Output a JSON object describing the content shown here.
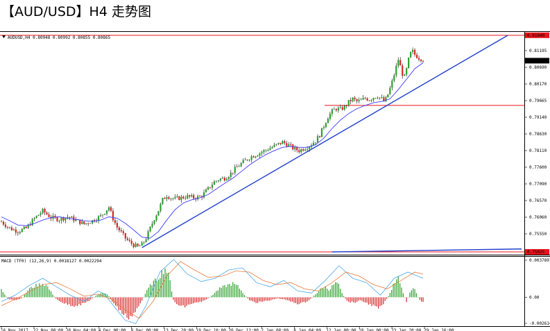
{
  "title": "【AUD/USD】H4 走势图",
  "colors": {
    "bull": "#2ca02c",
    "bear": "#d62728",
    "trendline": "#1f3fcc",
    "resistance": "#e8141a",
    "ma": "#3a3aff",
    "signal": "#e87a3a",
    "macd_line": "#49a7e8"
  },
  "chart_data": [
    {
      "type": "candlestick",
      "symbol_header": "AUDUSD,H4  0.80948 0.80992 0.80855 0.80865",
      "y_ticks": [
        "0.81195",
        "0.80690",
        "0.80170",
        "0.79665",
        "0.79140",
        "0.78630",
        "0.78110",
        "0.77600",
        "0.77090",
        "0.76570",
        "0.76060",
        "0.75550"
      ],
      "ylim": [
        0.7503,
        0.817
      ],
      "x_ticks": [
        "16 Nov 2017",
        "22 Nov 08:00",
        "28 Nov 04:00",
        "4 Dec 00:00",
        "8 Dec 00:00",
        "13 Dec 20:00",
        "19 Dec 16:00",
        "26 Dec 12:00",
        "2 Jan 08:00",
        "8 Jan 04:00",
        "12 Jan 00:00",
        "18 Jan 00:00",
        "23 Jan 20:00",
        "29 Jan 16:00"
      ],
      "last_price": "0.80865",
      "last_price_value": 0.80865,
      "price_path": [
        [
          0,
          0.7595
        ],
        [
          12,
          0.7575
        ],
        [
          24,
          0.7566
        ],
        [
          36,
          0.7575
        ],
        [
          48,
          0.7605
        ],
        [
          60,
          0.7628
        ],
        [
          72,
          0.7608
        ],
        [
          84,
          0.7602
        ],
        [
          96,
          0.761
        ],
        [
          108,
          0.76
        ],
        [
          120,
          0.7588
        ],
        [
          132,
          0.7598
        ],
        [
          144,
          0.7612
        ],
        [
          150,
          0.7625
        ],
        [
          156,
          0.764
        ],
        [
          162,
          0.7605
        ],
        [
          168,
          0.7578
        ],
        [
          174,
          0.7562
        ],
        [
          180,
          0.7545
        ],
        [
          186,
          0.7533
        ],
        [
          192,
          0.7524
        ],
        [
          198,
          0.7518
        ],
        [
          204,
          0.7525
        ],
        [
          210,
          0.7545
        ],
        [
          216,
          0.7575
        ],
        [
          222,
          0.7605
        ],
        [
          228,
          0.763
        ],
        [
          234,
          0.7662
        ],
        [
          240,
          0.7675
        ],
        [
          246,
          0.7668
        ],
        [
          252,
          0.7665
        ],
        [
          260,
          0.7668
        ],
        [
          270,
          0.7672
        ],
        [
          280,
          0.7668
        ],
        [
          290,
          0.7672
        ],
        [
          300,
          0.7695
        ],
        [
          308,
          0.7715
        ],
        [
          316,
          0.7725
        ],
        [
          324,
          0.7728
        ],
        [
          332,
          0.774
        ],
        [
          340,
          0.7758
        ],
        [
          348,
          0.7772
        ],
        [
          356,
          0.7785
        ],
        [
          364,
          0.7795
        ],
        [
          372,
          0.7802
        ],
        [
          380,
          0.781
        ],
        [
          390,
          0.782
        ],
        [
          400,
          0.783
        ],
        [
          408,
          0.7838
        ],
        [
          416,
          0.783
        ],
        [
          424,
          0.7818
        ],
        [
          432,
          0.7812
        ],
        [
          440,
          0.782
        ],
        [
          448,
          0.7828
        ],
        [
          456,
          0.7842
        ],
        [
          462,
          0.786
        ],
        [
          468,
          0.7888
        ],
        [
          474,
          0.7915
        ],
        [
          480,
          0.7932
        ],
        [
          486,
          0.794
        ],
        [
          492,
          0.7938
        ],
        [
          498,
          0.7945
        ],
        [
          504,
          0.796
        ],
        [
          510,
          0.797
        ],
        [
          516,
          0.7962
        ],
        [
          522,
          0.7965
        ],
        [
          528,
          0.7972
        ],
        [
          534,
          0.7968
        ],
        [
          540,
          0.7975
        ],
        [
          546,
          0.7978
        ],
        [
          552,
          0.797
        ],
        [
          556,
          0.796
        ],
        [
          560,
          0.7978
        ],
        [
          564,
          0.8002
        ],
        [
          568,
          0.8028
        ],
        [
          572,
          0.806
        ],
        [
          576,
          0.809
        ],
        [
          580,
          0.8062
        ],
        [
          584,
          0.803
        ],
        [
          588,
          0.806
        ],
        [
          592,
          0.81
        ],
        [
          596,
          0.8118
        ],
        [
          600,
          0.8105
        ],
        [
          606,
          0.8095
        ],
        [
          612,
          0.809
        ]
      ],
      "ma_path": [
        [
          0,
          0.761
        ],
        [
          12,
          0.7598
        ],
        [
          24,
          0.7585
        ],
        [
          36,
          0.7583
        ],
        [
          48,
          0.759
        ],
        [
          60,
          0.76
        ],
        [
          72,
          0.7608
        ],
        [
          84,
          0.761
        ],
        [
          96,
          0.7606
        ],
        [
          108,
          0.7602
        ],
        [
          120,
          0.7598
        ],
        [
          132,
          0.7596
        ],
        [
          144,
          0.76
        ],
        [
          156,
          0.761
        ],
        [
          168,
          0.7606
        ],
        [
          180,
          0.759
        ],
        [
          192,
          0.757
        ],
        [
          204,
          0.7548
        ],
        [
          216,
          0.7545
        ],
        [
          228,
          0.7565
        ],
        [
          240,
          0.76
        ],
        [
          252,
          0.7632
        ],
        [
          264,
          0.7652
        ],
        [
          276,
          0.7662
        ],
        [
          288,
          0.7668
        ],
        [
          300,
          0.7678
        ],
        [
          312,
          0.7695
        ],
        [
          324,
          0.7712
        ],
        [
          336,
          0.7728
        ],
        [
          348,
          0.7748
        ],
        [
          360,
          0.7768
        ],
        [
          372,
          0.7785
        ],
        [
          384,
          0.78
        ],
        [
          396,
          0.7812
        ],
        [
          408,
          0.7822
        ],
        [
          420,
          0.7825
        ],
        [
          432,
          0.7822
        ],
        [
          444,
          0.7822
        ],
        [
          456,
          0.783
        ],
        [
          468,
          0.785
        ],
        [
          480,
          0.788
        ],
        [
          492,
          0.7905
        ],
        [
          504,
          0.7925
        ],
        [
          516,
          0.794
        ],
        [
          528,
          0.795
        ],
        [
          540,
          0.7958
        ],
        [
          552,
          0.7962
        ],
        [
          564,
          0.797
        ],
        [
          576,
          0.7998
        ],
        [
          588,
          0.803
        ],
        [
          600,
          0.8062
        ],
        [
          612,
          0.808
        ]
      ],
      "annotations": {
        "horizontal_lines": [
          0.8164,
          0.795,
          0.7503
        ],
        "horizontal_line_labels": [
          "0.81640",
          "",
          "0.75025"
        ],
        "trendlines": [
          {
            "from": [
              204,
              0.7516
            ],
            "to": [
              735,
              0.8164
            ]
          },
          {
            "from": [
              480,
              0.7503
            ],
            "to": [
              755,
              0.7512
            ]
          }
        ]
      }
    },
    {
      "type": "bar",
      "header": "MACD (TF0) (12,26,9)  0.0018127  0.0022294",
      "y_ticks": [
        "0.00378970",
        "0.00",
        "-0.002614"
      ],
      "ylim": [
        -0.002614,
        0.0037897
      ],
      "histogram_path": [
        [
          0,
          0.0007
        ],
        [
          10,
          -0.0002
        ],
        [
          20,
          -0.0003
        ],
        [
          30,
          -0.0001
        ],
        [
          40,
          0.0008
        ],
        [
          50,
          0.0011
        ],
        [
          60,
          0.0013
        ],
        [
          66,
          0.0011
        ],
        [
          72,
          0.0005
        ],
        [
          80,
          -0.0002
        ],
        [
          92,
          -0.0006
        ],
        [
          104,
          -0.0008
        ],
        [
          116,
          -0.0007
        ],
        [
          128,
          -0.0003
        ],
        [
          138,
          0.0002
        ],
        [
          146,
          0.0004
        ],
        [
          154,
          0.0003
        ],
        [
          162,
          -0.0005
        ],
        [
          170,
          -0.0011
        ],
        [
          178,
          -0.0017
        ],
        [
          186,
          -0.0019
        ],
        [
          194,
          -0.0014
        ],
        [
          202,
          -0.0006
        ],
        [
          210,
          0.0005
        ],
        [
          218,
          0.0013
        ],
        [
          226,
          0.0017
        ],
        [
          232,
          0.0023
        ],
        [
          238,
          0.0028
        ],
        [
          244,
          0.0018
        ],
        [
          250,
          -0.0004
        ],
        [
          258,
          -0.0008
        ],
        [
          266,
          -0.0009
        ],
        [
          276,
          -0.0006
        ],
        [
          286,
          -0.0005
        ],
        [
          296,
          -0.0003
        ],
        [
          306,
          0.0002
        ],
        [
          316,
          0.0008
        ],
        [
          326,
          0.0011
        ],
        [
          336,
          0.0013
        ],
        [
          344,
          0.001
        ],
        [
          352,
          0.0003
        ],
        [
          360,
          -0.0003
        ],
        [
          370,
          -0.0005
        ],
        [
          380,
          -0.0004
        ],
        [
          390,
          -0.0003
        ],
        [
          400,
          -0.0001
        ],
        [
          410,
          -0.0002
        ],
        [
          420,
          -0.0004
        ],
        [
          430,
          -0.0006
        ],
        [
          440,
          -0.0005
        ],
        [
          448,
          -0.0002
        ],
        [
          456,
          0.0003
        ],
        [
          464,
          0.0008
        ],
        [
          470,
          0.001
        ],
        [
          476,
          0.0007
        ],
        [
          482,
          0.0012
        ],
        [
          488,
          0.0014
        ],
        [
          494,
          0.0004
        ],
        [
          502,
          -0.0004
        ],
        [
          512,
          -0.0005
        ],
        [
          522,
          -0.0003
        ],
        [
          532,
          -0.0006
        ],
        [
          540,
          -0.0008
        ],
        [
          548,
          -0.0011
        ],
        [
          556,
          -0.0005
        ],
        [
          564,
          0.0004
        ],
        [
          570,
          0.0013
        ],
        [
          576,
          0.0018
        ],
        [
          582,
          0.0006
        ],
        [
          588,
          -0.0004
        ],
        [
          594,
          0.0006
        ],
        [
          600,
          0.0009
        ],
        [
          606,
          -0.0002
        ],
        [
          612,
          -0.0005
        ]
      ],
      "macd_line_path": [
        [
          0,
          -0.0004
        ],
        [
          20,
          0.0002
        ],
        [
          40,
          0.0011
        ],
        [
          60,
          0.0018
        ],
        [
          80,
          0.001
        ],
        [
          100,
          0.0002
        ],
        [
          120,
          -0.0004
        ],
        [
          140,
          0.0006
        ],
        [
          150,
          0.0003
        ],
        [
          165,
          -0.001
        ],
        [
          180,
          -0.0022
        ],
        [
          195,
          -0.0025
        ],
        [
          210,
          -0.0008
        ],
        [
          230,
          0.0024
        ],
        [
          250,
          0.0036
        ],
        [
          270,
          0.0022
        ],
        [
          290,
          0.0015
        ],
        [
          310,
          0.0018
        ],
        [
          330,
          0.0026
        ],
        [
          350,
          0.0028
        ],
        [
          370,
          0.0014
        ],
        [
          390,
          0.001
        ],
        [
          410,
          0.0016
        ],
        [
          430,
          0.0006
        ],
        [
          450,
          0.0004
        ],
        [
          470,
          0.0016
        ],
        [
          490,
          0.003
        ],
        [
          510,
          0.0018
        ],
        [
          530,
          0.0014
        ],
        [
          550,
          0.0002
        ],
        [
          570,
          0.0018
        ],
        [
          590,
          0.0024
        ],
        [
          612,
          0.0018
        ]
      ],
      "signal_line_path": [
        [
          0,
          -0.0008
        ],
        [
          20,
          -0.0002
        ],
        [
          40,
          0.0005
        ],
        [
          60,
          0.0012
        ],
        [
          80,
          0.0014
        ],
        [
          100,
          0.0008
        ],
        [
          120,
          0.0001
        ],
        [
          140,
          0.0003
        ],
        [
          160,
          -0.0002
        ],
        [
          180,
          -0.0012
        ],
        [
          200,
          -0.002
        ],
        [
          220,
          -0.0004
        ],
        [
          240,
          0.002
        ],
        [
          260,
          0.0034
        ],
        [
          280,
          0.0026
        ],
        [
          300,
          0.0019
        ],
        [
          320,
          0.002
        ],
        [
          340,
          0.0025
        ],
        [
          360,
          0.0024
        ],
        [
          380,
          0.0016
        ],
        [
          400,
          0.0012
        ],
        [
          420,
          0.0014
        ],
        [
          440,
          0.0008
        ],
        [
          460,
          0.0006
        ],
        [
          480,
          0.0014
        ],
        [
          500,
          0.0024
        ],
        [
          520,
          0.002
        ],
        [
          540,
          0.0012
        ],
        [
          560,
          0.0008
        ],
        [
          580,
          0.0016
        ],
        [
          600,
          0.0024
        ],
        [
          612,
          0.0022
        ]
      ]
    }
  ]
}
